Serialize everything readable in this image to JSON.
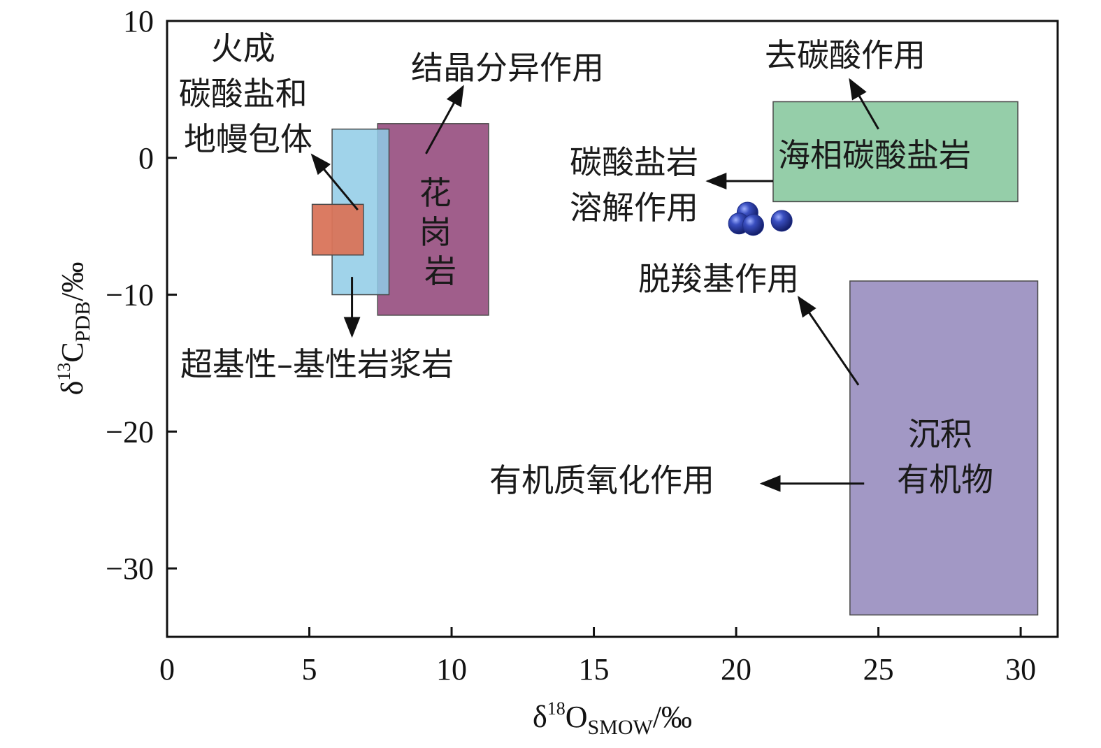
{
  "chart_data": {
    "type": "scatter",
    "xlim": [
      0,
      31.3
    ],
    "ylim": [
      -35,
      10
    ],
    "x_ticks": [
      0,
      5,
      10,
      15,
      20,
      25,
      30
    ],
    "y_ticks": [
      10,
      0,
      -10,
      -20,
      -30
    ],
    "xlabel": {
      "main": "δ",
      "sup": "18",
      "letter": "O",
      "sub": "SMOW",
      "unit": "/‰"
    },
    "ylabel": {
      "main": "δ",
      "sup": "13",
      "letter": "C",
      "sub": "PDB",
      "unit": "/‰"
    },
    "grid": false,
    "regions": [
      {
        "name": "granite",
        "x": [
          7.4,
          11.3
        ],
        "y": [
          -11.5,
          2.5
        ],
        "color": "#9b5585"
      },
      {
        "name": "ultrabasic-basic-magma",
        "x": [
          5.8,
          7.8
        ],
        "y": [
          -10,
          2.1
        ],
        "color": "#8fcbe6"
      },
      {
        "name": "igneous-carbonate-mantle",
        "x": [
          5.1,
          6.9
        ],
        "y": [
          -7.1,
          -3.4
        ],
        "color": "#d9745a"
      },
      {
        "name": "marine-carbonate",
        "x": [
          21.3,
          29.9
        ],
        "y": [
          -3.2,
          4.1
        ],
        "color": "#8fcba4"
      },
      {
        "name": "sedimentary-organic",
        "x": [
          24.0,
          30.6
        ],
        "y": [
          -33.4,
          -9.0
        ],
        "color": "#9d92c2"
      }
    ],
    "points": [
      {
        "x": 20.4,
        "y": -4.0
      },
      {
        "x": 20.1,
        "y": -4.8
      },
      {
        "x": 20.6,
        "y": -4.9
      },
      {
        "x": 21.6,
        "y": -4.6
      }
    ],
    "point_color": "#1f2f8a",
    "labels": {
      "granite": [
        "花",
        "岗",
        "岩"
      ],
      "igneous": [
        "火成",
        "碳酸盐和",
        "地幔包体"
      ],
      "crystallization": "结晶分异作用",
      "ultrabasic": "超基性–基性岩浆岩",
      "decarbonation": "去碳酸作用",
      "marine": "海相碳酸盐岩",
      "dissolution": [
        "碳酸盐岩",
        "溶解作用"
      ],
      "decarboxylation": "脱羧基作用",
      "sedimentary": [
        "沉积",
        "有机物"
      ],
      "oxidation": "有机质氧化作用"
    }
  }
}
